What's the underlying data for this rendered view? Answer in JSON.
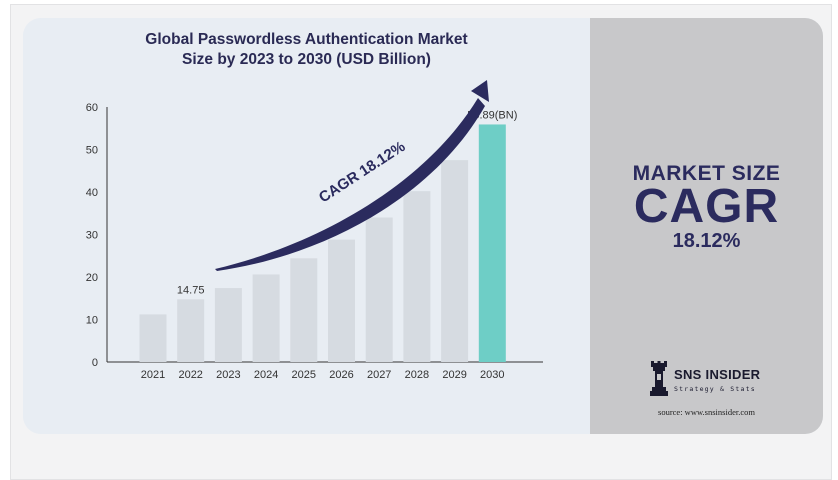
{
  "title": {
    "line1": "Global Passwordless Authentication Market",
    "line2": "Size by 2023 to 2030 (USD Billion)"
  },
  "chart_data": {
    "type": "bar",
    "categories": [
      "2021",
      "2022",
      "2023",
      "2024",
      "2025",
      "2026",
      "2027",
      "2028",
      "2029",
      "2030"
    ],
    "values": [
      11.2,
      14.75,
      17.4,
      20.6,
      24.4,
      28.8,
      34.0,
      40.2,
      47.5,
      55.89
    ],
    "ylim": [
      0,
      60
    ],
    "yticks": [
      0,
      10,
      20,
      30,
      40,
      50,
      60
    ],
    "data_labels": [
      {
        "category": "2022",
        "text": "14.75"
      },
      {
        "category": "2030",
        "text": "55.89(BN)"
      }
    ],
    "annotation": "CAGR 18.12%",
    "bar_color": "#d6dbe1",
    "highlight_color": "#6ecec6",
    "highlight_category": "2030",
    "arrow_color": "#2b2b5e",
    "grid": false
  },
  "side": {
    "label": "MARKET SIZE",
    "big": "CAGR",
    "value": "18.12%",
    "logo_name": "SNS INSIDER",
    "logo_tagline": "Strategy & Stats",
    "source": "source: www.snsinsider.com"
  }
}
